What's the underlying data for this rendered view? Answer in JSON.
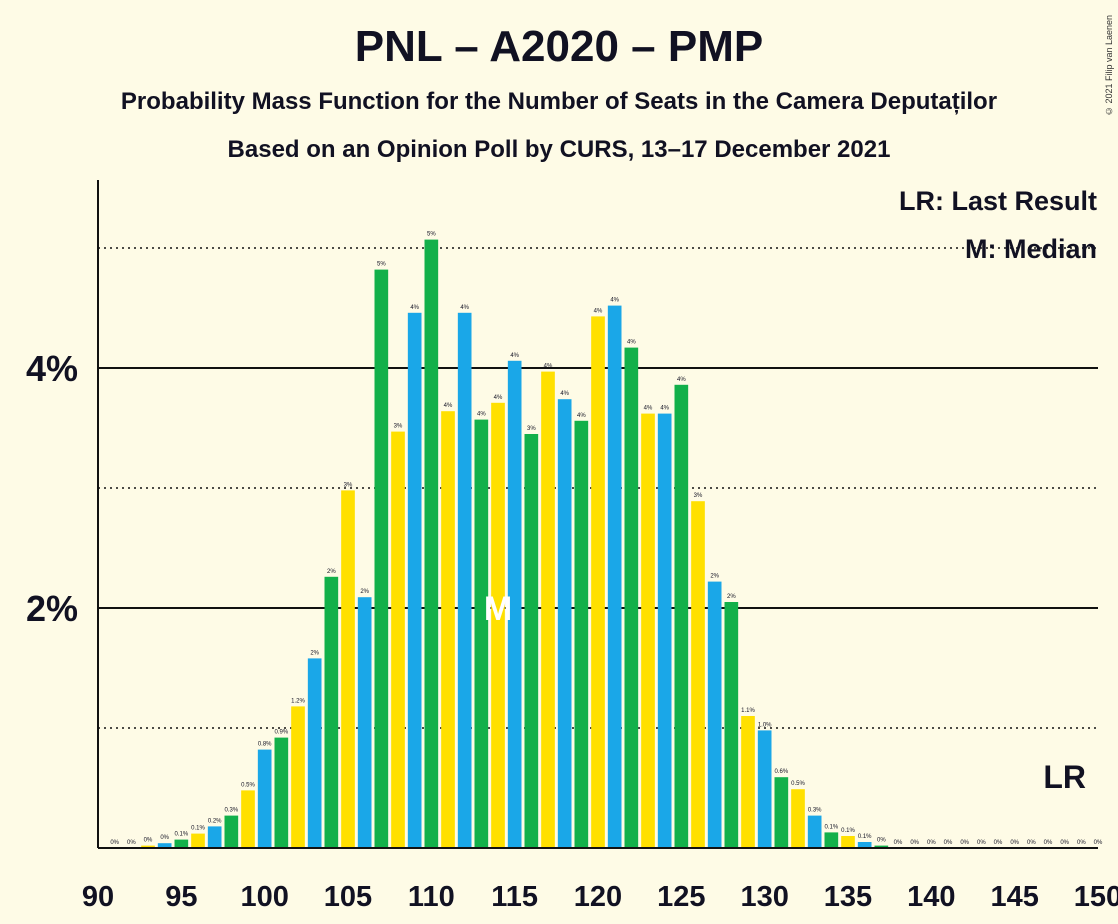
{
  "header": {
    "title": "PNL – A2020 – PMP",
    "subtitle": "Probability Mass Function for the Number of Seats in the Camera Deputaților",
    "subtitle2": "Based on an Opinion Poll by CURS, 13–17 December 2021",
    "copyright": "© 2021 Filip van Laenen"
  },
  "legend": {
    "last_result": "LR: Last Result",
    "median": "M: Median"
  },
  "markers": {
    "last_result_label": "LR",
    "last_result_seat": 148,
    "median_label": "M",
    "median_seat": 114
  },
  "colors": {
    "background": "#fefbe6",
    "pnl_blue": "#1aa7e8",
    "pmp_green": "#12b04a",
    "usr_yellow": "#ffe000"
  },
  "chart_data": {
    "type": "bar",
    "title": "PNL – A2020 – PMP",
    "ylim": [
      0,
      5.5
    ],
    "xlim": [
      90,
      150
    ],
    "yticks": [
      {
        "value": 2,
        "label": "2%"
      },
      {
        "value": 4,
        "label": "4%"
      }
    ],
    "gridlines_solid": [
      2,
      4
    ],
    "gridlines_dotted": [
      1,
      3,
      5
    ],
    "xticks": [
      {
        "value": 90,
        "label": "90"
      },
      {
        "value": 95,
        "label": "95"
      },
      {
        "value": 100,
        "label": "100"
      },
      {
        "value": 105,
        "label": "105"
      },
      {
        "value": 110,
        "label": "110"
      },
      {
        "value": 115,
        "label": "115"
      },
      {
        "value": 120,
        "label": "120"
      },
      {
        "value": 125,
        "label": "125"
      },
      {
        "value": 130,
        "label": "130"
      },
      {
        "value": 135,
        "label": "135"
      },
      {
        "value": 140,
        "label": "140"
      },
      {
        "value": 145,
        "label": "145"
      },
      {
        "value": 150,
        "label": "150"
      }
    ],
    "color_cycle": [
      "#1aa7e8",
      "#12b04a",
      "#ffe000"
    ],
    "legend_position": "top-right",
    "bars": [
      {
        "seat": 91,
        "value": 0.0,
        "label": "0%"
      },
      {
        "seat": 92,
        "value": 0.0,
        "label": "0%"
      },
      {
        "seat": 93,
        "value": 0.02,
        "label": "0%"
      },
      {
        "seat": 94,
        "value": 0.04,
        "label": "0%"
      },
      {
        "seat": 95,
        "value": 0.07,
        "label": "0.1%"
      },
      {
        "seat": 96,
        "value": 0.12,
        "label": "0.1%"
      },
      {
        "seat": 97,
        "value": 0.18,
        "label": "0.2%"
      },
      {
        "seat": 98,
        "value": 0.27,
        "label": "0.3%"
      },
      {
        "seat": 99,
        "value": 0.48,
        "label": "0.5%"
      },
      {
        "seat": 100,
        "value": 0.82,
        "label": "0.8%"
      },
      {
        "seat": 101,
        "value": 0.92,
        "label": "0.9%"
      },
      {
        "seat": 102,
        "value": 1.18,
        "label": "1.2%"
      },
      {
        "seat": 103,
        "value": 1.58,
        "label": "2%"
      },
      {
        "seat": 104,
        "value": 2.26,
        "label": "2%"
      },
      {
        "seat": 105,
        "value": 2.98,
        "label": "3%"
      },
      {
        "seat": 106,
        "value": 2.09,
        "label": "2%"
      },
      {
        "seat": 107,
        "value": 4.82,
        "label": "5%"
      },
      {
        "seat": 108,
        "value": 3.47,
        "label": "3%"
      },
      {
        "seat": 109,
        "value": 4.46,
        "label": "4%"
      },
      {
        "seat": 110,
        "value": 5.07,
        "label": "5%"
      },
      {
        "seat": 111,
        "value": 3.64,
        "label": "4%"
      },
      {
        "seat": 112,
        "value": 4.46,
        "label": "4%"
      },
      {
        "seat": 113,
        "value": 3.57,
        "label": "4%"
      },
      {
        "seat": 114,
        "value": 3.71,
        "label": "4%"
      },
      {
        "seat": 115,
        "value": 4.06,
        "label": "4%"
      },
      {
        "seat": 116,
        "value": 3.45,
        "label": "3%"
      },
      {
        "seat": 117,
        "value": 3.97,
        "label": "4%"
      },
      {
        "seat": 118,
        "value": 3.74,
        "label": "4%"
      },
      {
        "seat": 119,
        "value": 3.56,
        "label": "4%"
      },
      {
        "seat": 120,
        "value": 4.43,
        "label": "4%"
      },
      {
        "seat": 121,
        "value": 4.52,
        "label": "4%"
      },
      {
        "seat": 122,
        "value": 4.17,
        "label": "4%"
      },
      {
        "seat": 123,
        "value": 3.62,
        "label": "4%"
      },
      {
        "seat": 124,
        "value": 3.62,
        "label": "4%"
      },
      {
        "seat": 125,
        "value": 3.86,
        "label": "4%"
      },
      {
        "seat": 126,
        "value": 2.89,
        "label": "3%"
      },
      {
        "seat": 127,
        "value": 2.22,
        "label": "2%"
      },
      {
        "seat": 128,
        "value": 2.05,
        "label": "2%"
      },
      {
        "seat": 129,
        "value": 1.1,
        "label": "1.1%"
      },
      {
        "seat": 130,
        "value": 0.98,
        "label": "1.0%"
      },
      {
        "seat": 131,
        "value": 0.59,
        "label": "0.6%"
      },
      {
        "seat": 132,
        "value": 0.49,
        "label": "0.5%"
      },
      {
        "seat": 133,
        "value": 0.27,
        "label": "0.3%"
      },
      {
        "seat": 134,
        "value": 0.13,
        "label": "0.1%"
      },
      {
        "seat": 135,
        "value": 0.1,
        "label": "0.1%"
      },
      {
        "seat": 136,
        "value": 0.05,
        "label": "0.1%"
      },
      {
        "seat": 137,
        "value": 0.02,
        "label": "0%"
      },
      {
        "seat": 138,
        "value": 0.0,
        "label": "0%"
      },
      {
        "seat": 139,
        "value": 0.0,
        "label": "0%"
      },
      {
        "seat": 140,
        "value": 0.0,
        "label": "0%"
      },
      {
        "seat": 141,
        "value": 0.0,
        "label": "0%"
      },
      {
        "seat": 142,
        "value": 0.0,
        "label": "0%"
      },
      {
        "seat": 143,
        "value": 0.0,
        "label": "0%"
      },
      {
        "seat": 144,
        "value": 0.0,
        "label": "0%"
      },
      {
        "seat": 145,
        "value": 0.0,
        "label": "0%"
      },
      {
        "seat": 146,
        "value": 0.0,
        "label": "0%"
      },
      {
        "seat": 147,
        "value": 0.0,
        "label": "0%"
      },
      {
        "seat": 148,
        "value": 0.0,
        "label": "0%"
      },
      {
        "seat": 149,
        "value": 0.0,
        "label": "0%"
      },
      {
        "seat": 150,
        "value": 0.0,
        "label": "0%"
      }
    ]
  }
}
